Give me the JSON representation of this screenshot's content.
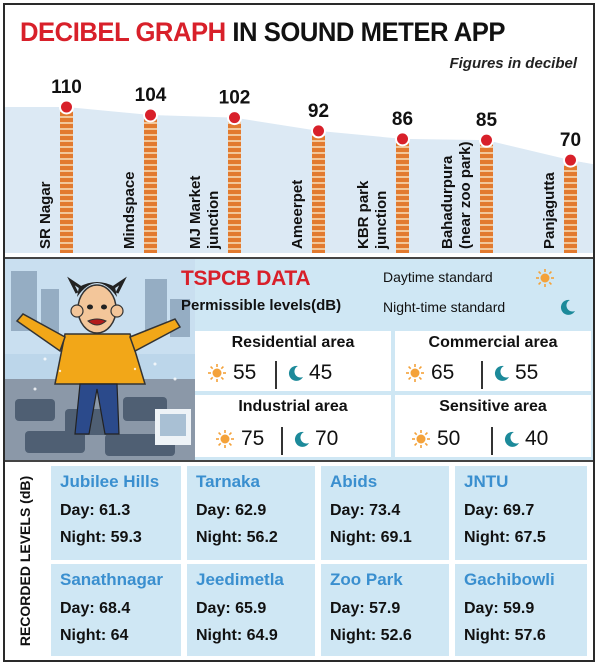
{
  "header": {
    "title_red": "DECIBEL GRAPH",
    "title_rest": "IN SOUND METER APP",
    "subtitle": "Figures in decibel"
  },
  "chart_data": {
    "type": "bar",
    "categories": [
      "SR Nagar",
      "Mindspace",
      "MJ Market junction",
      "Ameerpet",
      "KBR park junction",
      "Bahadurpura (near zoo park)",
      "Panjagutta"
    ],
    "label_lines": [
      [
        "SR Nagar"
      ],
      [
        "Mindspace"
      ],
      [
        "MJ Market",
        "junction"
      ],
      [
        "Ameerpet"
      ],
      [
        "KBR park",
        "junction"
      ],
      [
        "Bahadurpura",
        "(near zoo park)"
      ],
      [
        "Panjagutta"
      ]
    ],
    "values": [
      110,
      104,
      102,
      92,
      86,
      85,
      70
    ],
    "title": "DECIBEL GRAPH IN SOUND METER APP",
    "subtitle": "Figures in decibel",
    "colors": {
      "bar": "#e27a2f",
      "stripe": "#f2c79a",
      "dot": "#d8202a",
      "area": "#dce9f4"
    }
  },
  "tspcb": {
    "title": "TSPCB DATA",
    "permissible": "Permissible levels(dB)",
    "day_standard": "Daytime standard",
    "night_standard": "Night-time standard",
    "areas": [
      {
        "name": "Residential area",
        "day": "55",
        "night": "45"
      },
      {
        "name": "Commercial area",
        "day": "65",
        "night": "55"
      },
      {
        "name": "Industrial area",
        "day": "75",
        "night": "70"
      },
      {
        "name": "Sensitive area",
        "day": "50",
        "night": "40"
      }
    ]
  },
  "recorded": {
    "side_label": "RECORDED LEVELS (dB)",
    "locations": [
      {
        "name": "Jubilee Hills",
        "day": "Day: 61.3",
        "night": "Night: 59.3"
      },
      {
        "name": "Tarnaka",
        "day": "Day: 62.9",
        "night": "Night: 56.2"
      },
      {
        "name": "Abids",
        "day": "Day: 73.4",
        "night": "Night: 69.1"
      },
      {
        "name": "JNTU",
        "day": "Day: 69.7",
        "night": "Night: 67.5"
      },
      {
        "name": "Sanathnagar",
        "day": "Day: 68.4",
        "night": "Night: 64"
      },
      {
        "name": "Jeedimetla",
        "day": "Day: 65.9",
        "night": "Night: 64.9"
      },
      {
        "name": "Zoo Park",
        "day": "Day: 57.9",
        "night": "Night: 52.6"
      },
      {
        "name": "Gachibowli",
        "day": "Day: 59.9",
        "night": "Night: 57.6"
      }
    ]
  },
  "icons": {
    "day": "sun-icon",
    "night": "crescent-moon-icon",
    "sun_color": "#f4a23a",
    "moon_color": "#1c8a9a"
  }
}
